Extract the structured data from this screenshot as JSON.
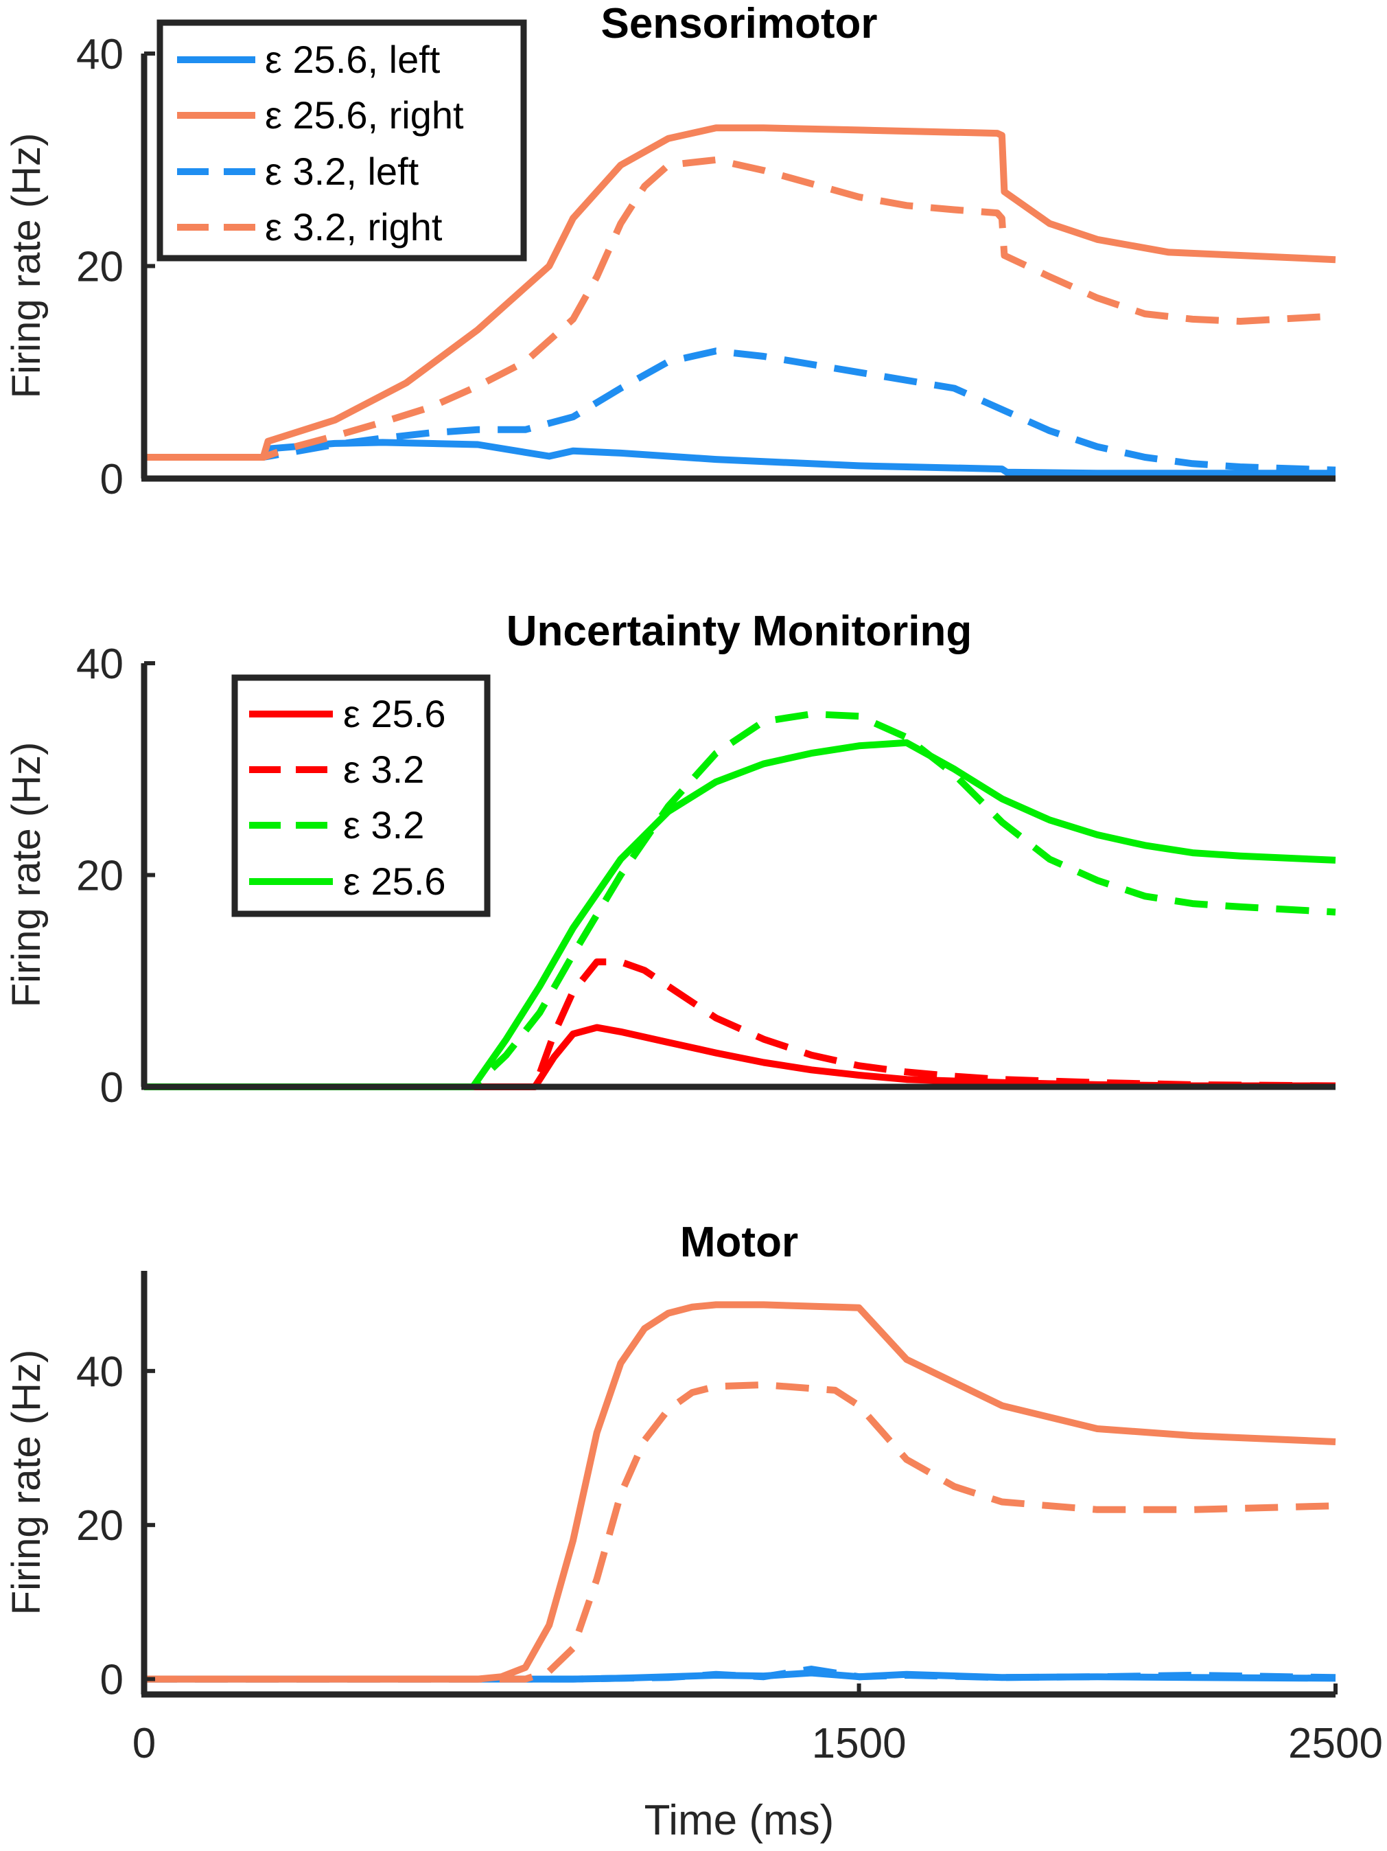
{
  "chart_data": [
    {
      "type": "line",
      "title": "Sensorimotor",
      "ylabel": "Firing rate (Hz)",
      "xlabel": "",
      "xlim": [
        0,
        2500
      ],
      "ylim": [
        0,
        40
      ],
      "yticks": [
        0,
        20,
        40
      ],
      "xticks": [],
      "legend_position": "top-left",
      "series": [
        {
          "name": "ε 25.6, left",
          "color": "#1f8ef1",
          "style": "solid",
          "x": [
            0,
            250,
            260,
            400,
            500,
            700,
            850,
            900,
            1000,
            1200,
            1500,
            1800,
            1810,
            2000,
            2200,
            2500
          ],
          "y": [
            2,
            2,
            2.8,
            3.3,
            3.4,
            3.2,
            2.1,
            2.6,
            2.4,
            1.8,
            1.2,
            0.9,
            0.6,
            0.5,
            0.5,
            0.5
          ]
        },
        {
          "name": "ε 25.6, right",
          "color": "#f5835a",
          "style": "solid",
          "x": [
            0,
            250,
            260,
            400,
            550,
            700,
            850,
            900,
            1000,
            1100,
            1200,
            1300,
            1500,
            1790,
            1800,
            1805,
            1900,
            2000,
            2150,
            2300,
            2500
          ],
          "y": [
            2,
            2,
            3.5,
            5.5,
            9,
            14,
            20,
            24.5,
            29.5,
            32,
            33,
            33,
            32.8,
            32.5,
            32.3,
            27,
            24,
            22.5,
            21.3,
            21,
            20.6
          ]
        },
        {
          "name": "ε 3.2, left",
          "color": "#1f8ef1",
          "style": "dashed",
          "x": [
            0,
            250,
            300,
            400,
            500,
            600,
            700,
            800,
            900,
            1000,
            1100,
            1200,
            1300,
            1500,
            1700,
            1800,
            1900,
            2000,
            2100,
            2200,
            2300,
            2500
          ],
          "y": [
            2,
            2,
            2.4,
            3.2,
            3.8,
            4.3,
            4.6,
            4.6,
            5.8,
            8.5,
            11,
            12,
            11.5,
            10,
            8.5,
            6.5,
            4.5,
            3,
            2,
            1.4,
            1.1,
            0.8
          ]
        },
        {
          "name": "ε 3.2, right",
          "color": "#f5835a",
          "style": "dashed",
          "x": [
            0,
            250,
            300,
            400,
            500,
            600,
            700,
            800,
            900,
            950,
            1000,
            1050,
            1100,
            1200,
            1300,
            1500,
            1600,
            1700,
            1790,
            1800,
            1805,
            1900,
            2000,
            2100,
            2200,
            2300,
            2500
          ],
          "y": [
            2,
            2,
            2.8,
            4,
            5.3,
            6.7,
            8.7,
            11,
            15,
            19,
            24,
            27.5,
            29.5,
            30,
            29,
            26.5,
            25.7,
            25.3,
            25,
            24.5,
            21,
            19,
            17,
            15.5,
            15,
            14.8,
            15.3
          ]
        }
      ]
    },
    {
      "type": "line",
      "title": "Uncertainty Monitoring",
      "ylabel": "Firing rate (Hz)",
      "xlabel": "",
      "xlim": [
        0,
        2500
      ],
      "ylim": [
        0,
        40
      ],
      "yticks": [
        0,
        20,
        40
      ],
      "xticks": [],
      "legend_position": "top-left",
      "series": [
        {
          "name": "ε 25.6",
          "color": "#ff0000",
          "style": "solid",
          "x": [
            0,
            690,
            750,
            820,
            860,
            900,
            950,
            1000,
            1100,
            1200,
            1300,
            1400,
            1500,
            1600,
            1800,
            2000,
            2200,
            2500
          ],
          "y": [
            0,
            0,
            0,
            0,
            2.8,
            5,
            5.6,
            5.2,
            4.2,
            3.2,
            2.3,
            1.6,
            1.1,
            0.7,
            0.4,
            0.2,
            0.1,
            0.1
          ]
        },
        {
          "name": "ε 3.2",
          "color": "#ff0000",
          "style": "dashed",
          "x": [
            0,
            820,
            860,
            900,
            950,
            1000,
            1050,
            1100,
            1200,
            1300,
            1400,
            1500,
            1600,
            1700,
            1800,
            2000,
            2200,
            2500
          ],
          "y": [
            0,
            0,
            5,
            9,
            11.8,
            11.8,
            11,
            9.5,
            6.5,
            4.5,
            3,
            2,
            1.4,
            1,
            0.7,
            0.4,
            0.2,
            0.1
          ]
        },
        {
          "name": "ε 3.2",
          "color": "#00ee00",
          "style": "dashed",
          "x": [
            0,
            690,
            760,
            830,
            900,
            1000,
            1100,
            1200,
            1300,
            1400,
            1500,
            1600,
            1700,
            1800,
            1900,
            2000,
            2100,
            2200,
            2300,
            2500
          ],
          "y": [
            0,
            0,
            3,
            7,
            12.5,
            20,
            26.5,
            31.5,
            34.5,
            35.2,
            35,
            33,
            29.5,
            25,
            21.5,
            19.5,
            18,
            17.3,
            17,
            16.5
          ]
        },
        {
          "name": "ε 25.6",
          "color": "#00ee00",
          "style": "solid",
          "x": [
            0,
            690,
            760,
            830,
            900,
            1000,
            1100,
            1200,
            1300,
            1400,
            1500,
            1600,
            1700,
            1800,
            1900,
            2000,
            2100,
            2200,
            2300,
            2500
          ],
          "y": [
            0,
            0,
            4.5,
            9.5,
            15,
            21.5,
            26,
            28.8,
            30.5,
            31.5,
            32.2,
            32.5,
            30,
            27.2,
            25.2,
            23.8,
            22.8,
            22.1,
            21.8,
            21.4
          ]
        }
      ]
    },
    {
      "type": "line",
      "title": "Motor",
      "ylabel": "Firing rate (Hz)",
      "xlabel": "Time (ms)",
      "xlim": [
        0,
        2500
      ],
      "ylim": [
        -2,
        53
      ],
      "yticks": [
        0,
        20,
        40
      ],
      "xticks": [
        0,
        1500,
        2500
      ],
      "series": [
        {
          "color": "#1f8ef1",
          "style": "solid",
          "x": [
            0,
            900,
            1000,
            1100,
            1200,
            1300,
            1400,
            1500,
            1600,
            1800,
            2000,
            2200,
            2500
          ],
          "y": [
            0,
            0,
            0.1,
            0.3,
            0.5,
            0.4,
            0.8,
            0.3,
            0.6,
            0.2,
            0.3,
            0.2,
            0.1
          ]
        },
        {
          "color": "#1f8ef1",
          "style": "dashed",
          "x": [
            0,
            900,
            1000,
            1100,
            1200,
            1300,
            1400,
            1500,
            1600,
            1800,
            2000,
            2200,
            2500
          ],
          "y": [
            0,
            0,
            0.1,
            0.2,
            0.6,
            0.3,
            1.3,
            0.3,
            0.5,
            0.2,
            0.3,
            0.5,
            0.2
          ]
        },
        {
          "color": "#f5835a",
          "style": "solid",
          "x": [
            0,
            700,
            750,
            800,
            850,
            900,
            950,
            1000,
            1050,
            1100,
            1150,
            1200,
            1300,
            1500,
            1600,
            1800,
            2000,
            2200,
            2500
          ],
          "y": [
            0,
            0,
            0.3,
            1.5,
            7,
            18,
            32,
            41,
            45.5,
            47.5,
            48.3,
            48.6,
            48.6,
            48.2,
            41.5,
            35.5,
            32.5,
            31.6,
            30.8
          ]
        },
        {
          "color": "#f5835a",
          "style": "dashed",
          "x": [
            0,
            800,
            850,
            900,
            950,
            1000,
            1050,
            1100,
            1150,
            1200,
            1300,
            1450,
            1500,
            1550,
            1600,
            1700,
            1800,
            1900,
            2000,
            2200,
            2500
          ],
          "y": [
            0,
            0,
            1,
            4,
            13,
            24,
            31,
            35,
            37.2,
            38,
            38.2,
            37.5,
            35.5,
            32,
            28.5,
            25,
            23,
            22.5,
            22,
            22,
            22.5
          ]
        }
      ]
    }
  ]
}
